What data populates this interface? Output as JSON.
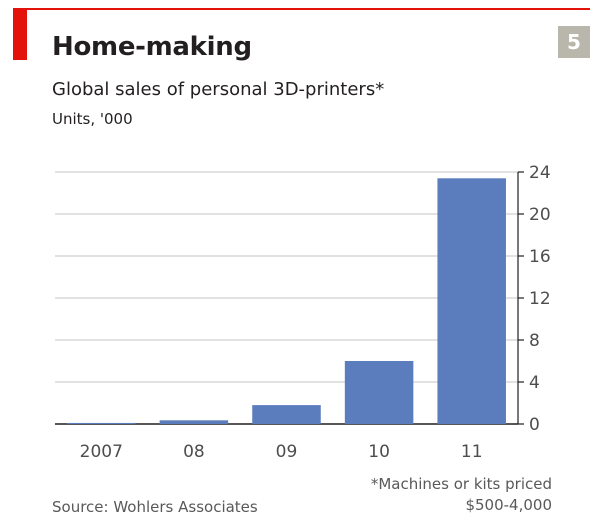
{
  "badge": "5",
  "chart_data": {
    "type": "bar",
    "title": "Home-making",
    "subtitle": "Global sales of personal 3D-printers*",
    "ylabel": "Units, '000",
    "categories": [
      "2007",
      "08",
      "09",
      "10",
      "11"
    ],
    "values": [
      0.1,
      0.35,
      1.8,
      6.0,
      23.4
    ],
    "ylim": [
      0,
      24
    ],
    "yticks": [
      0,
      4,
      8,
      12,
      16,
      20,
      24
    ],
    "y_axis_side": "right",
    "grid": true,
    "bar_color": "#5b7dbd",
    "footnote_lines": [
      "*Machines or kits priced",
      "$500-4,000"
    ],
    "source": "Source: Wohlers Associates"
  }
}
